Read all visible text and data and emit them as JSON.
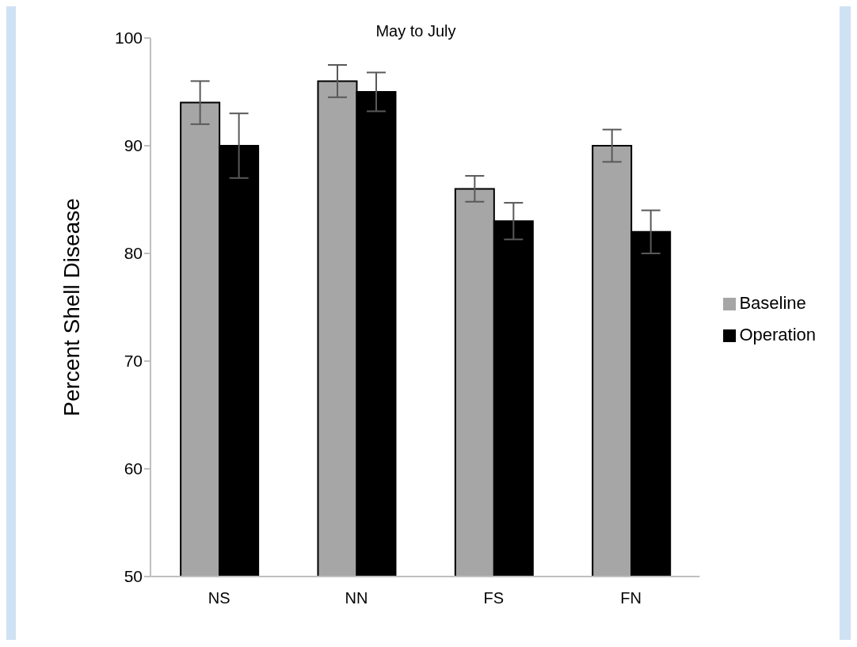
{
  "chart_data": {
    "type": "bar",
    "title": "May to July",
    "ylabel": "Percent Shell Disease",
    "categories": [
      "NS",
      "NN",
      "FS",
      "FN"
    ],
    "series": [
      {
        "name": "Baseline",
        "color": "#a6a6a6",
        "values": [
          94,
          96,
          86,
          90
        ],
        "errors": [
          2,
          1.5,
          1.2,
          1.5
        ]
      },
      {
        "name": "Operation",
        "color": "#000000",
        "values": [
          90,
          95,
          83,
          82
        ],
        "errors": [
          3,
          1.8,
          1.7,
          2
        ]
      }
    ],
    "ylim": [
      50,
      100
    ],
    "yticks": [
      50,
      60,
      70,
      80,
      90,
      100
    ],
    "grid": false,
    "legend": "right"
  }
}
